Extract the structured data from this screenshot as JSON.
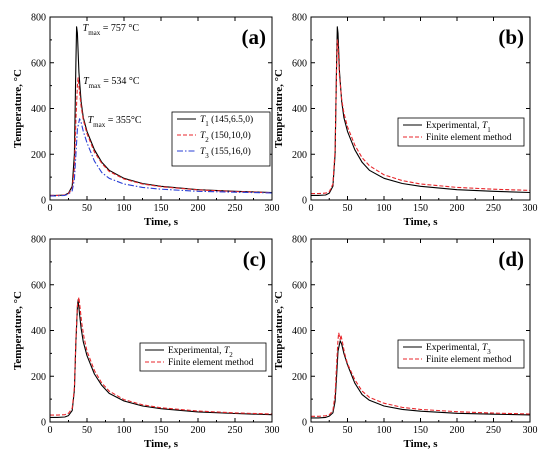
{
  "chart_data": [
    {
      "type": "line",
      "panel": "(a)",
      "xlabel": "Time, s",
      "ylabel": "Temperature, °C",
      "xlim": [
        0,
        300
      ],
      "ylim": [
        0,
        800
      ],
      "xticks": [
        "0",
        "50",
        "100",
        "150",
        "200",
        "250",
        "300"
      ],
      "yticks": [
        "0",
        "200",
        "400",
        "600",
        "800"
      ],
      "legend": "center-right",
      "annotations": [
        {
          "label": "T",
          "sub": "max",
          "text": " = 757 °C",
          "x": 36,
          "y": 757
        },
        {
          "label": "T",
          "sub": "max",
          "text": " = 534 °C",
          "x": 38,
          "y": 534
        },
        {
          "label": "T",
          "sub": "max",
          "text": " = 355°C",
          "x": 40,
          "y": 355
        }
      ],
      "series": [
        {
          "name": "T",
          "sub": "1",
          "rest": " (145,6.5,0)",
          "color": "#000000",
          "dash": "",
          "x": [
            0,
            10,
            20,
            25,
            30,
            33,
            35,
            36,
            37,
            39,
            42,
            45,
            50,
            60,
            70,
            80,
            100,
            125,
            150,
            200,
            250,
            300
          ],
          "y": [
            20,
            20,
            22,
            30,
            60,
            200,
            600,
            757,
            730,
            560,
            430,
            360,
            300,
            220,
            165,
            130,
            95,
            72,
            60,
            45,
            38,
            33
          ]
        },
        {
          "name": "T",
          "sub": "2",
          "rest": " (150,10,0)",
          "color": "#e8262b",
          "dash": "4,2",
          "x": [
            0,
            10,
            20,
            25,
            30,
            33,
            35,
            37,
            38,
            40,
            42,
            45,
            50,
            60,
            70,
            80,
            100,
            125,
            150,
            200,
            250,
            300
          ],
          "y": [
            20,
            20,
            22,
            28,
            50,
            140,
            350,
            500,
            534,
            470,
            410,
            350,
            290,
            210,
            160,
            125,
            92,
            70,
            58,
            44,
            37,
            32
          ]
        },
        {
          "name": "T",
          "sub": "3",
          "rest": " (155,16,0)",
          "color": "#2a3fd6",
          "dash": "6,2,1.5,2",
          "x": [
            0,
            10,
            20,
            25,
            30,
            33,
            35,
            37,
            40,
            42,
            45,
            50,
            60,
            70,
            80,
            100,
            125,
            150,
            200,
            250,
            300
          ],
          "y": [
            18,
            18,
            20,
            26,
            40,
            90,
            200,
            310,
            355,
            340,
            300,
            250,
            170,
            120,
            95,
            70,
            55,
            47,
            38,
            34,
            31
          ]
        }
      ]
    },
    {
      "type": "line",
      "panel": "(b)",
      "xlabel": "Time, s",
      "ylabel": "Temperature, °C",
      "xlim": [
        0,
        300
      ],
      "ylim": [
        0,
        800
      ],
      "xticks": [
        "0",
        "50",
        "100",
        "150",
        "200",
        "250",
        "300"
      ],
      "yticks": [
        "0",
        "200",
        "400",
        "600",
        "800"
      ],
      "legend": "center-right",
      "series": [
        {
          "name": "Experimental, T",
          "sub": "1",
          "rest": "",
          "color": "#000000",
          "dash": "",
          "x": [
            0,
            10,
            20,
            25,
            30,
            33,
            35,
            36,
            37,
            39,
            42,
            45,
            50,
            60,
            70,
            80,
            100,
            125,
            150,
            200,
            250,
            300
          ],
          "y": [
            20,
            20,
            22,
            30,
            60,
            200,
            600,
            757,
            730,
            560,
            430,
            360,
            300,
            220,
            165,
            130,
            95,
            72,
            60,
            45,
            38,
            33
          ]
        },
        {
          "name": "Finite element method",
          "sub": "",
          "rest": "",
          "color": "#e8262b",
          "dash": "4,2",
          "x": [
            0,
            10,
            20,
            25,
            30,
            33,
            35,
            36,
            37,
            39,
            42,
            45,
            50,
            60,
            70,
            80,
            100,
            125,
            150,
            200,
            250,
            300
          ],
          "y": [
            28,
            28,
            30,
            36,
            70,
            220,
            580,
            700,
            680,
            540,
            440,
            380,
            320,
            240,
            185,
            150,
            110,
            85,
            70,
            55,
            47,
            42
          ]
        }
      ]
    },
    {
      "type": "line",
      "panel": "(c)",
      "xlabel": "Time, s",
      "ylabel": "Temperature, °C",
      "xlim": [
        0,
        300
      ],
      "ylim": [
        0,
        800
      ],
      "xticks": [
        "0",
        "50",
        "100",
        "150",
        "200",
        "250",
        "300"
      ],
      "yticks": [
        "0",
        "200",
        "400",
        "600",
        "800"
      ],
      "legend": "center-right",
      "series": [
        {
          "name": "Experimental, T",
          "sub": "2",
          "rest": "",
          "color": "#000000",
          "dash": "",
          "x": [
            0,
            10,
            20,
            25,
            30,
            33,
            35,
            37,
            38,
            40,
            42,
            45,
            50,
            60,
            70,
            80,
            100,
            125,
            150,
            200,
            250,
            300
          ],
          "y": [
            20,
            20,
            22,
            28,
            50,
            140,
            350,
            500,
            534,
            470,
            410,
            350,
            290,
            210,
            160,
            125,
            92,
            70,
            58,
            44,
            37,
            32
          ]
        },
        {
          "name": "Finite element method",
          "sub": "",
          "rest": "",
          "color": "#e8262b",
          "dash": "4,2",
          "x": [
            0,
            10,
            20,
            25,
            30,
            33,
            35,
            37,
            39,
            41,
            43,
            46,
            50,
            60,
            70,
            80,
            100,
            125,
            150,
            200,
            250,
            300
          ],
          "y": [
            30,
            30,
            32,
            38,
            60,
            150,
            360,
            510,
            545,
            490,
            430,
            370,
            310,
            225,
            170,
            135,
            98,
            75,
            62,
            48,
            40,
            35
          ]
        }
      ]
    },
    {
      "type": "line",
      "panel": "(d)",
      "xlabel": "Time, s",
      "ylabel": "Temperature, °C",
      "xlim": [
        0,
        300
      ],
      "ylim": [
        0,
        800
      ],
      "xticks": [
        "0",
        "50",
        "100",
        "150",
        "200",
        "250",
        "300"
      ],
      "yticks": [
        "0",
        "200",
        "400",
        "600",
        "800"
      ],
      "legend": "center-right",
      "series": [
        {
          "name": "Experimental, T",
          "sub": "3",
          "rest": "",
          "color": "#000000",
          "dash": "",
          "x": [
            0,
            10,
            20,
            25,
            30,
            33,
            35,
            37,
            40,
            42,
            45,
            50,
            60,
            70,
            80,
            100,
            125,
            150,
            200,
            250,
            300
          ],
          "y": [
            18,
            18,
            20,
            26,
            40,
            90,
            200,
            310,
            355,
            340,
            300,
            250,
            170,
            120,
            95,
            70,
            55,
            47,
            38,
            34,
            31
          ]
        },
        {
          "name": "Finite element method",
          "sub": "",
          "rest": "",
          "color": "#e8262b",
          "dash": "4,2",
          "x": [
            0,
            10,
            20,
            25,
            30,
            33,
            35,
            37,
            38,
            40,
            41,
            43,
            46,
            50,
            60,
            70,
            80,
            100,
            125,
            150,
            200,
            250,
            300
          ],
          "y": [
            25,
            25,
            27,
            32,
            50,
            120,
            250,
            360,
            390,
            360,
            380,
            350,
            300,
            255,
            185,
            135,
            108,
            82,
            64,
            55,
            45,
            39,
            35
          ]
        }
      ]
    }
  ]
}
